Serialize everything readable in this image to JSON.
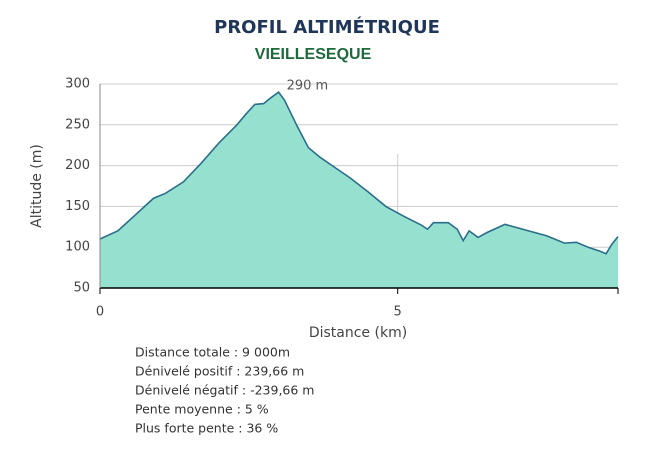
{
  "chart_data": {
    "type": "area",
    "title": "PROFIL ALTIMÉTRIQUE",
    "subtitle": "VIEILLESEQUE",
    "annotation": "290 m",
    "x_label": "Distance (km)",
    "y_label": "Altitude (m)",
    "x": [
      0,
      0.3,
      0.6,
      0.9,
      1.1,
      1.4,
      1.7,
      2.0,
      2.3,
      2.45,
      2.6,
      2.75,
      2.85,
      3.0,
      3.1,
      3.3,
      3.5,
      3.7,
      3.9,
      4.2,
      4.5,
      4.8,
      5.1,
      5.4,
      5.5,
      5.6,
      5.85,
      6.0,
      6.1,
      6.2,
      6.35,
      6.5,
      6.8,
      7.1,
      7.5,
      7.8,
      8.0,
      8.2,
      8.4,
      8.5,
      8.6,
      8.7
    ],
    "series": [
      {
        "name": "Altitude",
        "color": "#2a6f8a",
        "fill": "#96e0d0",
        "values": [
          110,
          120,
          140,
          160,
          166,
          180,
          203,
          228,
          250,
          263,
          275,
          276,
          282,
          290,
          280,
          250,
          222,
          210,
          200,
          185,
          168,
          150,
          138,
          127,
          122,
          130,
          130,
          122,
          108,
          120,
          112,
          118,
          128,
          122,
          114,
          105,
          106,
          100,
          95,
          92,
          104,
          113
        ]
      }
    ],
    "xlim": [
      0,
      8.7
    ],
    "xticks": [
      0,
      5
    ],
    "ylim": [
      50,
      300
    ],
    "yticks": [
      50,
      100,
      150,
      200,
      250,
      300
    ],
    "grid": true,
    "stats": [
      "Distance totale :  9 000m",
      "Dénivelé positif : 239,66 m",
      "Dénivelé négatif : -239,66 m",
      "Pente moyenne : 5 %",
      "Plus forte pente : 36 %"
    ]
  }
}
